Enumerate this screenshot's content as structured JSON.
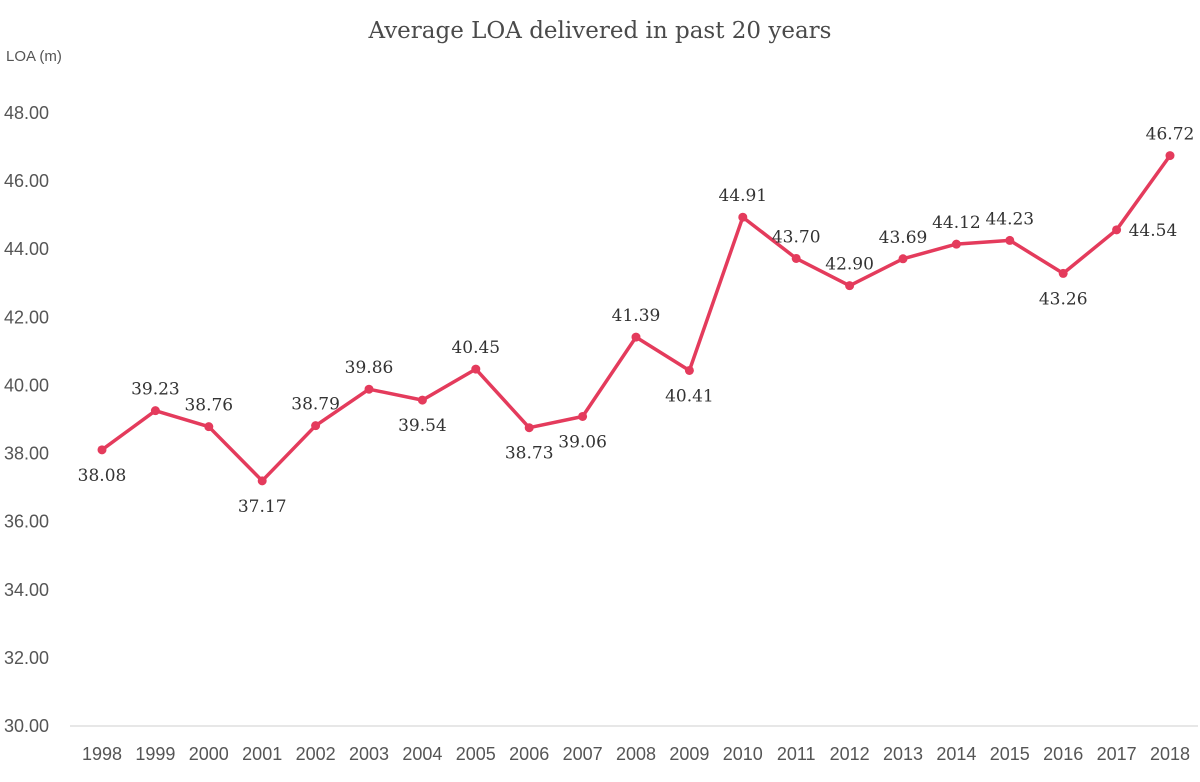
{
  "chart_data": {
    "type": "line",
    "title": "Average LOA delivered in past 20 years",
    "ylabel": "LOA (m)",
    "xlabel": "",
    "ylim": [
      30,
      48
    ],
    "yticks": [
      "30.00",
      "32.00",
      "34.00",
      "36.00",
      "38.00",
      "40.00",
      "42.00",
      "44.00",
      "46.00",
      "48.00"
    ],
    "grid": false,
    "categories": [
      "1998",
      "1999",
      "2000",
      "2001",
      "2002",
      "2003",
      "2004",
      "2005",
      "2006",
      "2007",
      "2008",
      "2009",
      "2010",
      "2011",
      "2012",
      "2013",
      "2014",
      "2015",
      "2016",
      "2017",
      "2018"
    ],
    "series": [
      {
        "values": [
          38.08,
          39.23,
          38.76,
          37.17,
          38.79,
          39.86,
          39.54,
          40.45,
          38.73,
          39.06,
          41.39,
          40.41,
          44.91,
          43.7,
          42.9,
          43.69,
          44.12,
          44.23,
          43.26,
          44.54,
          46.72
        ],
        "data_labels": [
          "38.08",
          "39.23",
          "38.76",
          "37.17",
          "38.79",
          "39.86",
          "39.54",
          "40.45",
          "38.73",
          "39.06",
          "41.39",
          "40.41",
          "44.91",
          "43.70",
          "42.90",
          "43.69",
          "44.12",
          "44.23",
          "43.26",
          "44.54",
          "46.72"
        ],
        "label_positions": [
          "below",
          "above",
          "above",
          "below",
          "above",
          "above",
          "below",
          "above",
          "below",
          "below",
          "above",
          "below",
          "above",
          "above",
          "above",
          "above",
          "above",
          "above",
          "below",
          "right",
          "above"
        ],
        "color": "#e43b5c"
      }
    ]
  }
}
